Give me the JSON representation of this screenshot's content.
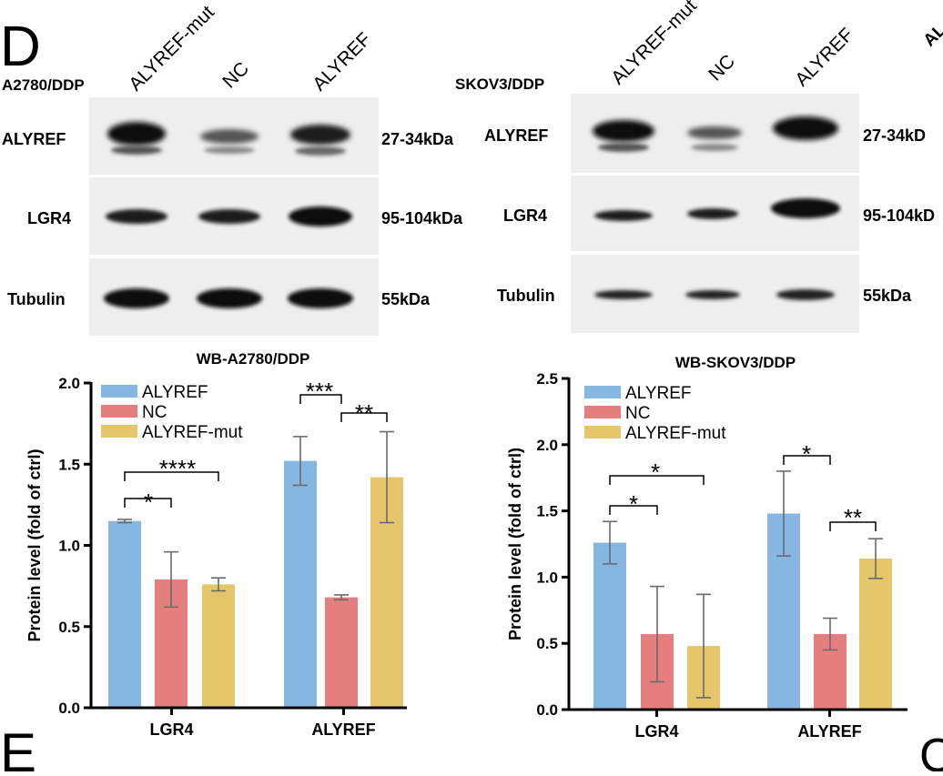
{
  "panel_label": "D",
  "next_panel_label": "E",
  "clipped_right_letter": "C",
  "blot_left": {
    "cell_line": "A2780/DDP",
    "lanes": [
      "ALYREF-mut",
      "NC",
      "ALYREF"
    ],
    "rows": [
      {
        "protein": "ALYREF",
        "size": "27-34kDa"
      },
      {
        "protein": "LGR4",
        "size": "95-104kDa"
      },
      {
        "protein": "Tubulin",
        "size": "55kDa"
      }
    ]
  },
  "blot_right": {
    "cell_line": "SKOV3/DDP",
    "lanes": [
      "ALYREF-mut",
      "NC",
      "ALYREF"
    ],
    "clipped_lane_label": "AL",
    "rows": [
      {
        "protein": "ALYREF",
        "size": "27-34kD"
      },
      {
        "protein": "LGR4",
        "size": "95-104kD"
      },
      {
        "protein": "Tubulin",
        "size": "55kDa"
      }
    ]
  },
  "chart_data": [
    {
      "type": "bar",
      "title": "WB-A2780/DDP",
      "xlabel": "",
      "ylabel": "Protein level (fold of ctrl)",
      "categories": [
        "LGR4",
        "ALYREF"
      ],
      "series": [
        {
          "name": "ALYREF",
          "color": "#86B7E3",
          "values": [
            1.15,
            1.52
          ],
          "errors": [
            0.01,
            0.15
          ]
        },
        {
          "name": "NC",
          "color": "#E57F7E",
          "values": [
            0.79,
            0.68
          ],
          "errors": [
            0.17,
            0.015
          ]
        },
        {
          "name": "ALYREF-mut",
          "color": "#E6C66A",
          "values": [
            0.76,
            1.42
          ],
          "errors": [
            0.04,
            0.28
          ]
        }
      ],
      "ylim": [
        0,
        2.0
      ],
      "yticks": [
        "0.0",
        "0.5",
        "1.0",
        "1.5",
        "2.0"
      ],
      "significance": [
        "*",
        "****",
        "***",
        "**"
      ],
      "legend": "top-left",
      "grid": false
    },
    {
      "type": "bar",
      "title": "WB-SKOV3/DDP",
      "xlabel": "",
      "ylabel": "Protein level (fold of ctrl)",
      "categories": [
        "LGR4",
        "ALYREF"
      ],
      "series": [
        {
          "name": "ALYREF",
          "color": "#86B7E3",
          "values": [
            1.26,
            1.48
          ],
          "errors": [
            0.16,
            0.32
          ]
        },
        {
          "name": "NC",
          "color": "#E57F7E",
          "values": [
            0.57,
            0.57
          ],
          "errors": [
            0.36,
            0.12
          ]
        },
        {
          "name": "ALYREF-mut",
          "color": "#E6C66A",
          "values": [
            0.48,
            1.14
          ],
          "errors": [
            0.39,
            0.15
          ]
        }
      ],
      "ylim": [
        0,
        2.5
      ],
      "yticks": [
        "0.0",
        "0.5",
        "1.0",
        "1.5",
        "2.0",
        "2.5"
      ],
      "significance": [
        "*",
        "*",
        "*",
        "**"
      ],
      "legend": "top-left",
      "grid": false
    }
  ]
}
